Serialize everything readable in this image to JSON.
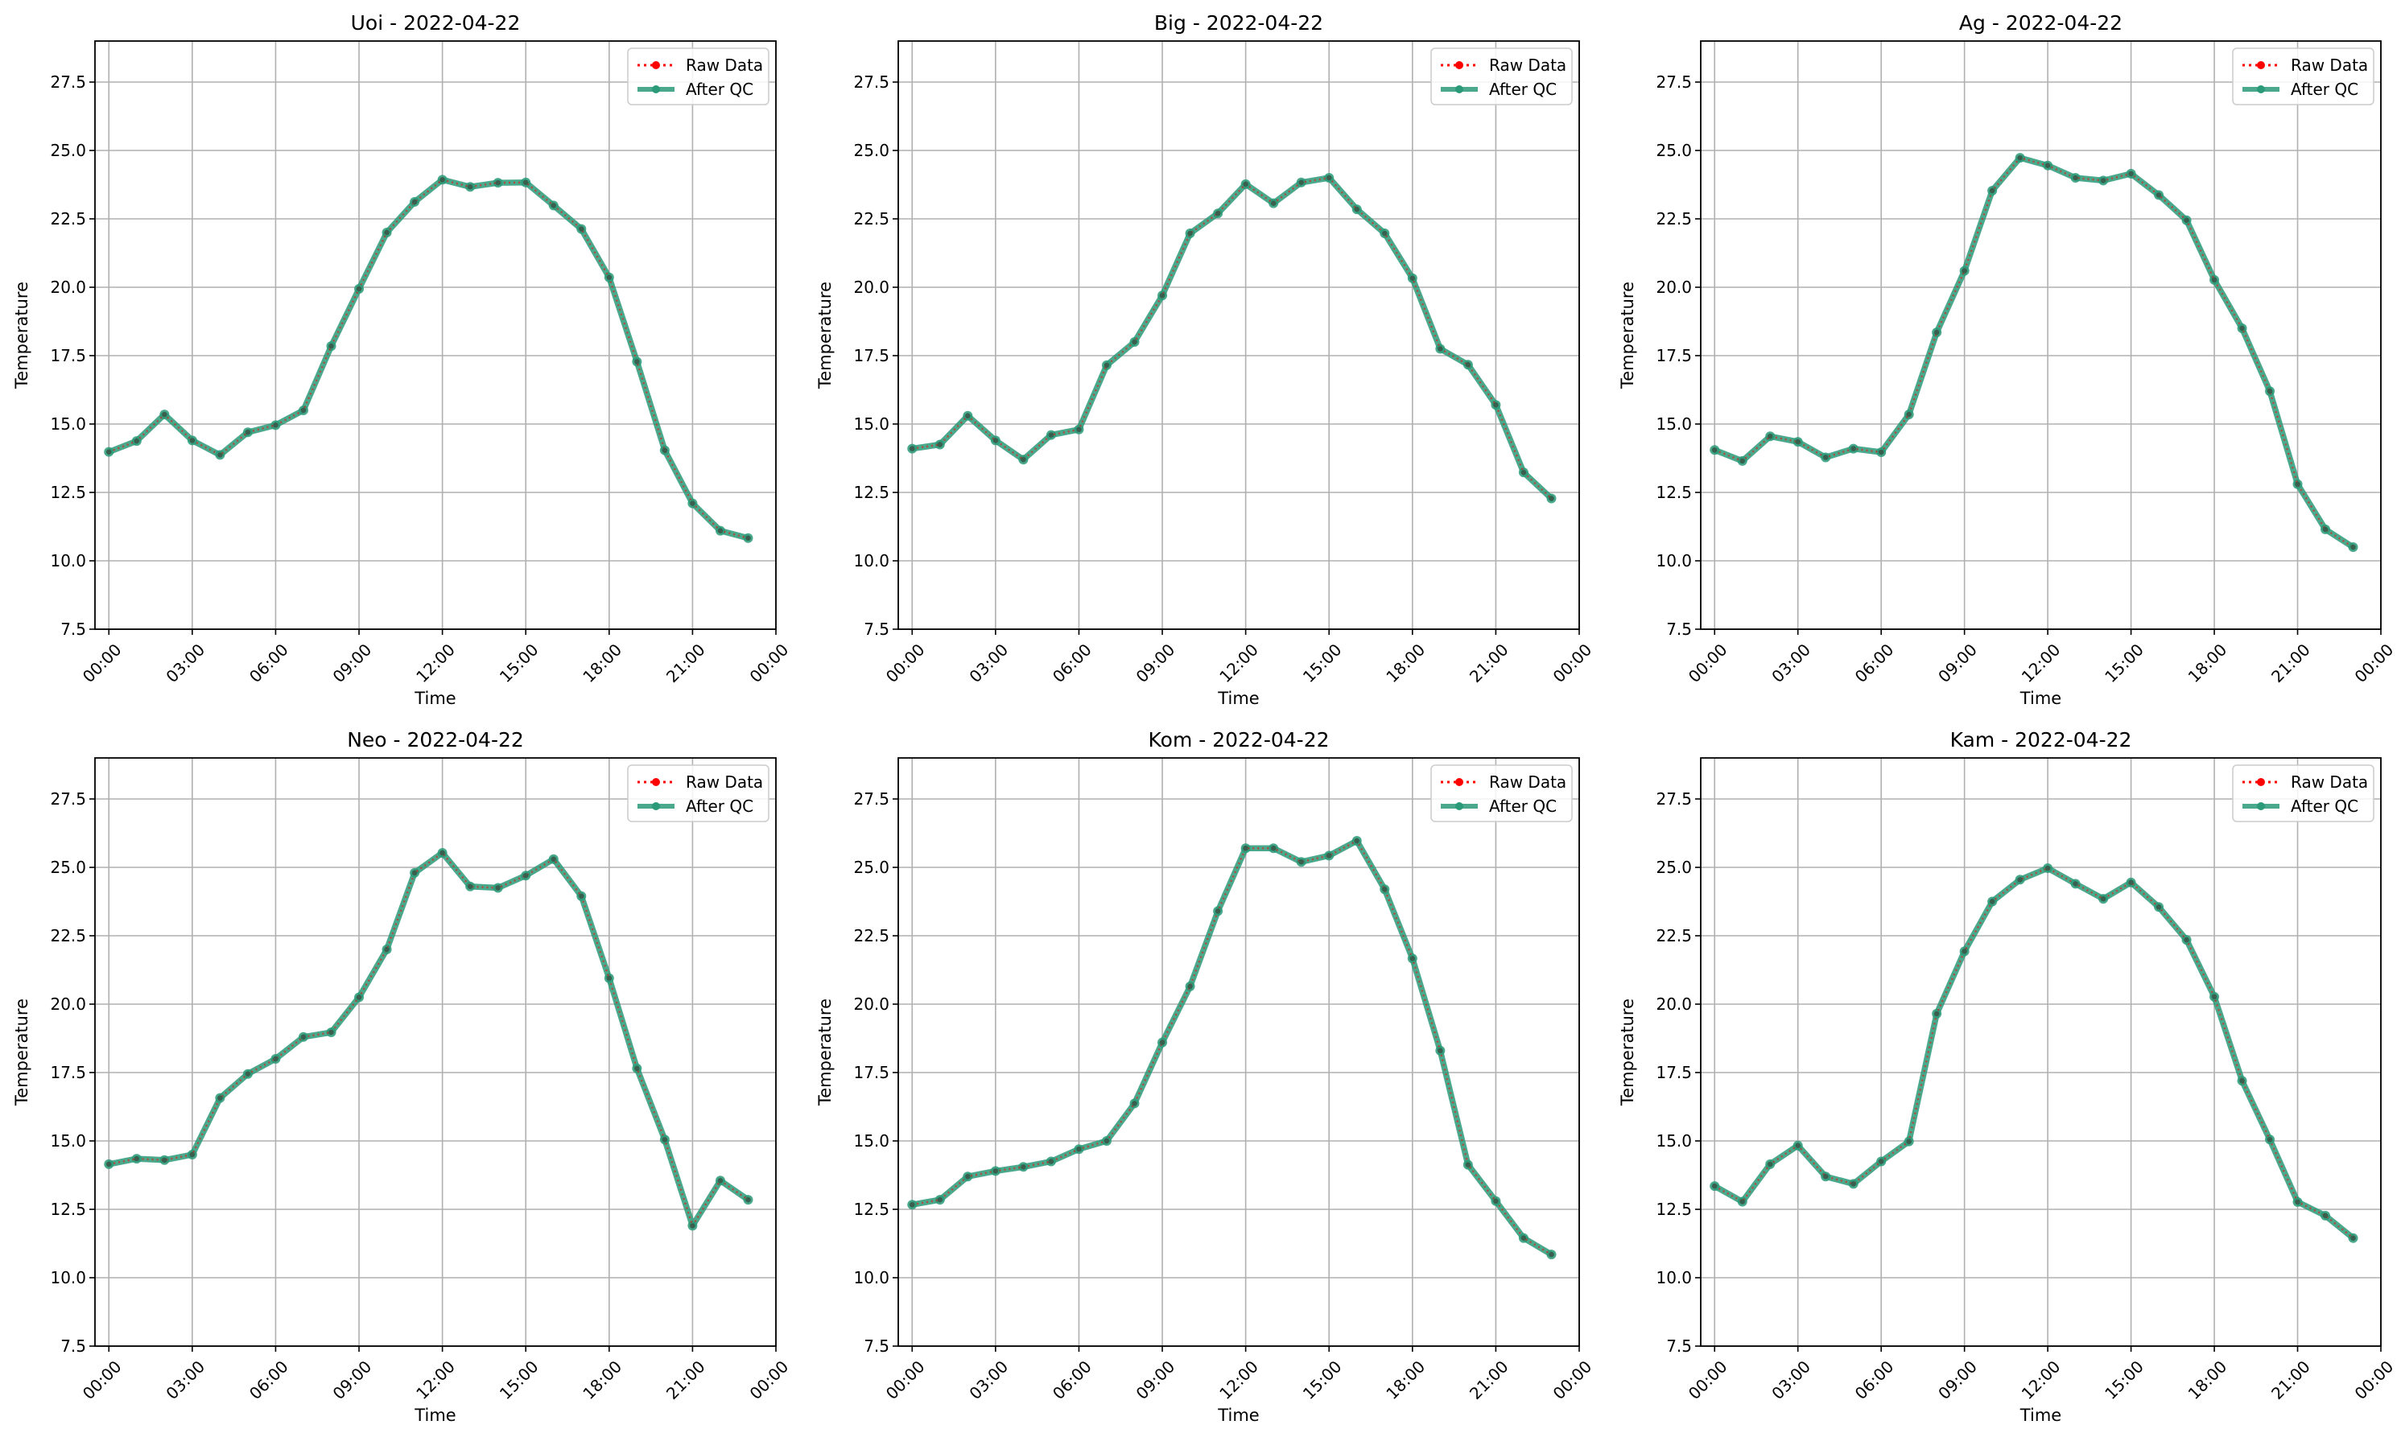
{
  "figure": {
    "colors": {
      "raw": "#ff0000",
      "qc": "#2a9a78",
      "grid": "#b0b0b0",
      "frame": "#000000"
    }
  },
  "chart_data": [
    {
      "type": "line",
      "title": "Uoi - 2022-04-22",
      "xlabel": "Time",
      "ylabel": "Temperature",
      "ylim": [
        7.5,
        29.0
      ],
      "xlim": [
        -0.5,
        24.0
      ],
      "grid": true,
      "legend_position": "top-right",
      "x": [
        "00:00",
        "01:00",
        "02:00",
        "03:00",
        "04:00",
        "05:00",
        "06:00",
        "07:00",
        "08:00",
        "09:00",
        "10:00",
        "11:00",
        "12:00",
        "13:00",
        "14:00",
        "15:00",
        "16:00",
        "17:00",
        "18:00",
        "19:00",
        "20:00",
        "21:00",
        "22:00",
        "23:00"
      ],
      "x_tick_labels": [
        "00:00",
        "03:00",
        "06:00",
        "09:00",
        "12:00",
        "15:00",
        "18:00",
        "21:00",
        "00:00"
      ],
      "y_tick_labels": [
        "7.5",
        "10.0",
        "12.5",
        "15.0",
        "17.5",
        "20.0",
        "22.5",
        "25.0",
        "27.5"
      ],
      "series": [
        {
          "name": "Raw Data",
          "style": "dotted",
          "values": [
            13.98,
            14.38,
            15.35,
            14.4,
            13.87,
            14.7,
            14.96,
            15.5,
            17.85,
            19.94,
            22.0,
            23.12,
            23.93,
            23.67,
            23.82,
            23.83,
            22.99,
            22.13,
            20.36,
            17.28,
            14.04,
            12.1,
            11.1,
            10.83
          ]
        },
        {
          "name": "After QC",
          "style": "solid",
          "values": [
            13.98,
            14.38,
            15.35,
            14.4,
            13.87,
            14.7,
            14.96,
            15.5,
            17.85,
            19.94,
            22.0,
            23.12,
            23.93,
            23.67,
            23.82,
            23.83,
            22.99,
            22.13,
            20.36,
            17.28,
            14.04,
            12.1,
            11.1,
            10.83
          ]
        }
      ]
    },
    {
      "type": "line",
      "title": "Big - 2022-04-22",
      "xlabel": "Time",
      "ylabel": "Temperature",
      "ylim": [
        7.5,
        29.0
      ],
      "xlim": [
        -0.5,
        24.0
      ],
      "grid": true,
      "legend_position": "top-right",
      "x": [
        "00:00",
        "01:00",
        "02:00",
        "03:00",
        "04:00",
        "05:00",
        "06:00",
        "07:00",
        "08:00",
        "09:00",
        "10:00",
        "11:00",
        "12:00",
        "13:00",
        "14:00",
        "15:00",
        "16:00",
        "17:00",
        "18:00",
        "19:00",
        "20:00",
        "21:00",
        "22:00",
        "23:00"
      ],
      "x_tick_labels": [
        "00:00",
        "03:00",
        "06:00",
        "09:00",
        "12:00",
        "15:00",
        "18:00",
        "21:00",
        "00:00"
      ],
      "y_tick_labels": [
        "7.5",
        "10.0",
        "12.5",
        "15.0",
        "17.5",
        "20.0",
        "22.5",
        "25.0",
        "27.5"
      ],
      "series": [
        {
          "name": "Raw Data",
          "style": "dotted",
          "values": [
            14.1,
            14.25,
            15.3,
            14.4,
            13.7,
            14.6,
            14.8,
            17.15,
            18.0,
            19.7,
            21.97,
            22.7,
            23.77,
            23.07,
            23.83,
            24.0,
            22.85,
            21.97,
            20.33,
            17.75,
            17.17,
            15.7,
            13.23,
            12.28
          ]
        },
        {
          "name": "After QC",
          "style": "solid",
          "values": [
            14.1,
            14.25,
            15.3,
            14.4,
            13.7,
            14.6,
            14.8,
            17.15,
            18.0,
            19.7,
            21.97,
            22.7,
            23.77,
            23.07,
            23.83,
            24.0,
            22.85,
            21.97,
            20.33,
            17.75,
            17.17,
            15.7,
            13.23,
            12.28
          ]
        }
      ]
    },
    {
      "type": "line",
      "title": "Ag - 2022-04-22",
      "xlabel": "Time",
      "ylabel": "Temperature",
      "ylim": [
        7.5,
        29.0
      ],
      "xlim": [
        -0.5,
        24.0
      ],
      "grid": true,
      "legend_position": "top-right",
      "x": [
        "00:00",
        "01:00",
        "02:00",
        "03:00",
        "04:00",
        "05:00",
        "06:00",
        "07:00",
        "08:00",
        "09:00",
        "10:00",
        "11:00",
        "12:00",
        "13:00",
        "14:00",
        "15:00",
        "16:00",
        "17:00",
        "18:00",
        "19:00",
        "20:00",
        "21:00",
        "22:00",
        "23:00"
      ],
      "x_tick_labels": [
        "00:00",
        "03:00",
        "06:00",
        "09:00",
        "12:00",
        "15:00",
        "18:00",
        "21:00",
        "00:00"
      ],
      "y_tick_labels": [
        "7.5",
        "10.0",
        "12.5",
        "15.0",
        "17.5",
        "20.0",
        "22.5",
        "25.0",
        "27.5"
      ],
      "series": [
        {
          "name": "Raw Data",
          "style": "dotted",
          "values": [
            14.05,
            13.65,
            14.55,
            14.35,
            13.78,
            14.1,
            13.97,
            15.35,
            18.35,
            20.6,
            23.53,
            24.73,
            24.45,
            24.0,
            23.9,
            24.15,
            23.37,
            22.45,
            20.27,
            18.5,
            16.2,
            12.8,
            11.15,
            10.5
          ]
        },
        {
          "name": "After QC",
          "style": "solid",
          "values": [
            14.05,
            13.65,
            14.55,
            14.35,
            13.78,
            14.1,
            13.97,
            15.35,
            18.35,
            20.6,
            23.53,
            24.73,
            24.45,
            24.0,
            23.9,
            24.15,
            23.37,
            22.45,
            20.27,
            18.5,
            16.2,
            12.8,
            11.15,
            10.5
          ]
        }
      ]
    },
    {
      "type": "line",
      "title": "Neo - 2022-04-22",
      "xlabel": "Time",
      "ylabel": "Temperature",
      "ylim": [
        7.5,
        29.0
      ],
      "xlim": [
        -0.5,
        24.0
      ],
      "grid": true,
      "legend_position": "top-right",
      "x": [
        "00:00",
        "01:00",
        "02:00",
        "03:00",
        "04:00",
        "05:00",
        "06:00",
        "07:00",
        "08:00",
        "09:00",
        "10:00",
        "11:00",
        "12:00",
        "13:00",
        "14:00",
        "15:00",
        "16:00",
        "17:00",
        "18:00",
        "19:00",
        "20:00",
        "21:00",
        "22:00",
        "23:00"
      ],
      "x_tick_labels": [
        "00:00",
        "03:00",
        "06:00",
        "09:00",
        "12:00",
        "15:00",
        "18:00",
        "21:00",
        "00:00"
      ],
      "y_tick_labels": [
        "7.5",
        "10.0",
        "12.5",
        "15.0",
        "17.5",
        "20.0",
        "22.5",
        "25.0",
        "27.5"
      ],
      "series": [
        {
          "name": "Raw Data",
          "style": "dotted",
          "values": [
            14.15,
            14.35,
            14.3,
            14.5,
            16.57,
            17.45,
            18.0,
            18.8,
            18.97,
            20.25,
            22.0,
            24.8,
            25.53,
            24.3,
            24.25,
            24.7,
            25.3,
            23.95,
            20.95,
            17.65,
            15.05,
            11.9,
            13.55,
            12.85
          ]
        },
        {
          "name": "After QC",
          "style": "solid",
          "values": [
            14.15,
            14.35,
            14.3,
            14.5,
            16.57,
            17.45,
            18.0,
            18.8,
            18.97,
            20.25,
            22.0,
            24.8,
            25.53,
            24.3,
            24.25,
            24.7,
            25.3,
            23.95,
            20.95,
            17.65,
            15.05,
            11.9,
            13.55,
            12.85
          ]
        }
      ]
    },
    {
      "type": "line",
      "title": "Kom - 2022-04-22",
      "xlabel": "Time",
      "ylabel": "Temperature",
      "ylim": [
        7.5,
        29.0
      ],
      "xlim": [
        -0.5,
        24.0
      ],
      "grid": true,
      "legend_position": "top-right",
      "x": [
        "00:00",
        "01:00",
        "02:00",
        "03:00",
        "04:00",
        "05:00",
        "06:00",
        "07:00",
        "08:00",
        "09:00",
        "10:00",
        "11:00",
        "12:00",
        "13:00",
        "14:00",
        "15:00",
        "16:00",
        "17:00",
        "18:00",
        "19:00",
        "20:00",
        "21:00",
        "22:00",
        "23:00"
      ],
      "x_tick_labels": [
        "00:00",
        "03:00",
        "06:00",
        "09:00",
        "12:00",
        "15:00",
        "18:00",
        "21:00",
        "00:00"
      ],
      "y_tick_labels": [
        "7.5",
        "10.0",
        "12.5",
        "15.0",
        "17.5",
        "20.0",
        "22.5",
        "25.0",
        "27.5"
      ],
      "series": [
        {
          "name": "Raw Data",
          "style": "dotted",
          "values": [
            12.67,
            12.85,
            13.7,
            13.9,
            14.05,
            14.25,
            14.7,
            15.0,
            16.37,
            18.6,
            20.65,
            23.4,
            25.7,
            25.7,
            25.2,
            25.43,
            25.97,
            24.2,
            21.67,
            18.3,
            14.13,
            12.8,
            11.45,
            10.85
          ]
        },
        {
          "name": "After QC",
          "style": "solid",
          "values": [
            12.67,
            12.85,
            13.7,
            13.9,
            14.05,
            14.25,
            14.7,
            15.0,
            16.37,
            18.6,
            20.65,
            23.4,
            25.7,
            25.7,
            25.2,
            25.43,
            25.97,
            24.2,
            21.67,
            18.3,
            14.13,
            12.8,
            11.45,
            10.85
          ]
        }
      ]
    },
    {
      "type": "line",
      "title": "Kam - 2022-04-22",
      "xlabel": "Time",
      "ylabel": "Temperature",
      "ylim": [
        7.5,
        29.0
      ],
      "xlim": [
        -0.5,
        24.0
      ],
      "grid": true,
      "legend_position": "top-right",
      "x": [
        "00:00",
        "01:00",
        "02:00",
        "03:00",
        "04:00",
        "05:00",
        "06:00",
        "07:00",
        "08:00",
        "09:00",
        "10:00",
        "11:00",
        "12:00",
        "13:00",
        "14:00",
        "15:00",
        "16:00",
        "17:00",
        "18:00",
        "19:00",
        "20:00",
        "21:00",
        "22:00",
        "23:00"
      ],
      "x_tick_labels": [
        "00:00",
        "03:00",
        "06:00",
        "09:00",
        "12:00",
        "15:00",
        "18:00",
        "21:00",
        "00:00"
      ],
      "y_tick_labels": [
        "7.5",
        "10.0",
        "12.5",
        "15.0",
        "17.5",
        "20.0",
        "22.5",
        "25.0",
        "27.5"
      ],
      "series": [
        {
          "name": "Raw Data",
          "style": "dotted",
          "values": [
            13.35,
            12.78,
            14.15,
            14.83,
            13.7,
            13.43,
            14.25,
            14.98,
            19.65,
            21.93,
            23.75,
            24.55,
            24.97,
            24.4,
            23.85,
            24.45,
            23.55,
            22.35,
            20.27,
            17.2,
            15.05,
            12.77,
            12.27,
            11.45
          ]
        },
        {
          "name": "After QC",
          "style": "solid",
          "values": [
            13.35,
            12.78,
            14.15,
            14.83,
            13.7,
            13.43,
            14.25,
            14.98,
            19.65,
            21.93,
            23.75,
            24.55,
            24.97,
            24.4,
            23.85,
            24.45,
            23.55,
            22.35,
            20.27,
            17.2,
            15.05,
            12.77,
            12.27,
            11.45
          ]
        }
      ]
    }
  ]
}
